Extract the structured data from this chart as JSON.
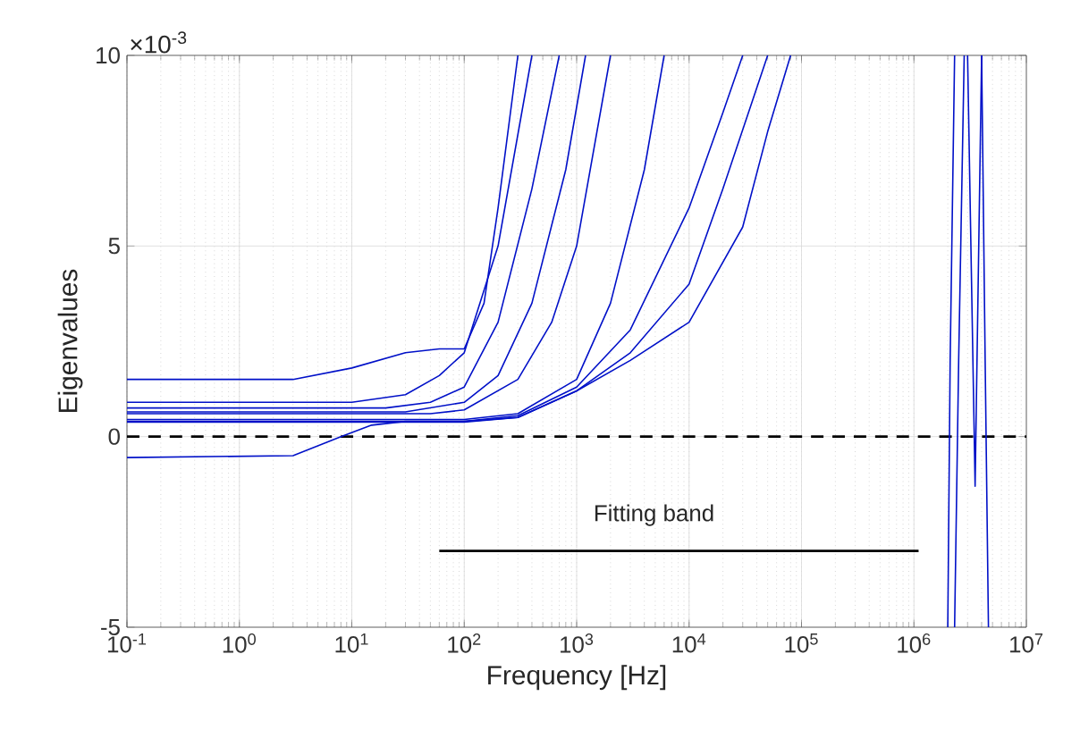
{
  "chart_data": {
    "type": "line",
    "xlabel": "Frequency [Hz]",
    "ylabel": "Eigenvalues",
    "log": "x",
    "grid": true,
    "xlim": [
      0.1,
      10000000
    ],
    "ylim": [
      -5,
      10
    ],
    "xticks": [
      {
        "value": 0.1,
        "label": "10$^{-1}$"
      },
      {
        "value": 1,
        "label": "10$^{0}$"
      },
      {
        "value": 10,
        "label": "10$^{1}$"
      },
      {
        "value": 100,
        "label": "10$^{2}$"
      },
      {
        "value": 1000,
        "label": "10$^{3}$"
      },
      {
        "value": 10000,
        "label": "10$^{4}$"
      },
      {
        "value": 100000,
        "label": "10$^{5}$"
      },
      {
        "value": 1000000,
        "label": "10$^{6}$"
      },
      {
        "value": 10000000,
        "label": "10$^{7}$"
      }
    ],
    "yticks": [
      -5,
      0,
      5,
      10
    ],
    "line_style": "solid",
    "series": [
      {
        "color": "#0010c8",
        "x": [
          0.1,
          3,
          10,
          30,
          60,
          100,
          150,
          200,
          300
        ],
        "values": [
          1.5,
          1.5,
          1.8,
          2.2,
          2.3,
          2.3,
          3.5,
          6,
          10
        ]
      },
      {
        "color": "#0010c8",
        "x": [
          0.1,
          3,
          8,
          15,
          30,
          100,
          300,
          1000,
          3000,
          10000,
          30000,
          50000,
          80000
        ],
        "values": [
          -0.55,
          -0.5,
          0,
          0.3,
          0.4,
          0.4,
          0.5,
          1.2,
          2,
          3,
          5.5,
          8,
          10
        ]
      },
      {
        "color": "#0010c8",
        "x": [
          0.1,
          10,
          30,
          60,
          100,
          200,
          400
        ],
        "values": [
          0.9,
          0.9,
          1.1,
          1.6,
          2.2,
          5,
          10
        ]
      },
      {
        "color": "#0010c8",
        "x": [
          0.1,
          20,
          50,
          100,
          200,
          400,
          700
        ],
        "values": [
          0.75,
          0.75,
          0.9,
          1.3,
          3,
          6.5,
          10
        ]
      },
      {
        "color": "#0010c8",
        "x": [
          0.1,
          30,
          100,
          200,
          400,
          800,
          1200
        ],
        "values": [
          0.65,
          0.65,
          0.9,
          1.6,
          3.5,
          7,
          10
        ]
      },
      {
        "color": "#0010c8",
        "x": [
          0.1,
          50,
          100,
          300,
          600,
          1000,
          2000
        ],
        "values": [
          0.6,
          0.6,
          0.7,
          1.5,
          3,
          5,
          10
        ]
      },
      {
        "color": "#0010c8",
        "x": [
          0.1,
          100,
          300,
          1000,
          2000,
          4000,
          6000
        ],
        "values": [
          0.45,
          0.45,
          0.6,
          1.5,
          3.5,
          7,
          10
        ]
      },
      {
        "color": "#0010c8",
        "x": [
          0.1,
          100,
          300,
          1000,
          3000,
          10000,
          20000,
          30000
        ],
        "values": [
          0.4,
          0.4,
          0.55,
          1.3,
          2.8,
          6,
          8.5,
          10
        ]
      },
      {
        "color": "#0010c8",
        "x": [
          0.1,
          100,
          300,
          1000,
          3000,
          10000,
          20000,
          50000
        ],
        "values": [
          0.38,
          0.38,
          0.5,
          1.2,
          2.2,
          4,
          6.5,
          10
        ]
      },
      {
        "color": "#0010c8",
        "x": [
          2000000,
          2100000,
          2300000
        ],
        "values": [
          -5,
          2,
          10
        ]
      },
      {
        "color": "#0010c8",
        "x": [
          2300000,
          2500000,
          2800000
        ],
        "values": [
          -5,
          2,
          10
        ]
      },
      {
        "color": "#0010c8",
        "x": [
          3000000,
          3500000,
          4000000
        ],
        "values": [
          10,
          -1.3,
          10
        ]
      },
      {
        "color": "#0010c8",
        "x": [
          4000000,
          4300000,
          4600000
        ],
        "values": [
          10,
          2,
          -5
        ]
      },
      {
        "type": "line",
        "color": "#000000",
        "x": [
          60,
          1100000
        ],
        "values": [
          -3,
          -3
        ]
      }
    ],
    "ref_lines": [
      {
        "axis": "y",
        "value": 0,
        "color": "#000000",
        "line_style": "dashed"
      }
    ],
    "annotations": [
      "×10$^{-3}$",
      "Fitting band"
    ]
  }
}
